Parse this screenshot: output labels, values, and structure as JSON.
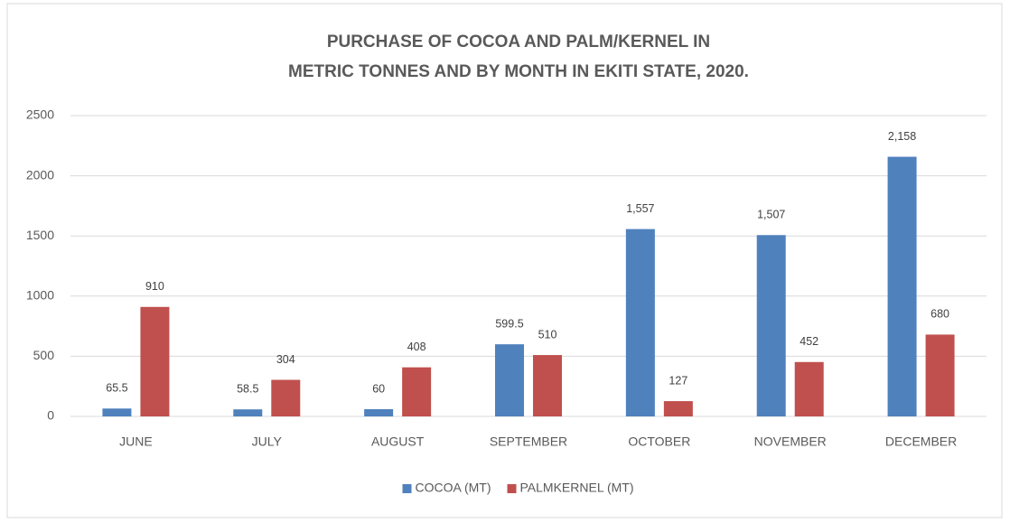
{
  "chart_data": {
    "type": "bar",
    "title": [
      "PURCHASE OF COCOA AND PALM/KERNEL IN",
      "METRIC TONNES AND BY MONTH IN EKITI STATE, 2020."
    ],
    "categories": [
      "JUNE",
      "JULY",
      "AUGUST",
      "SEPTEMBER",
      "OCTOBER",
      "NOVEMBER",
      "DECEMBER"
    ],
    "series": [
      {
        "name": "COCOA (MT)",
        "color": "#4f81bd",
        "values": [
          65.5,
          58.5,
          60,
          599.5,
          1557,
          1507,
          2158
        ],
        "value_labels": [
          "65.5",
          "58.5",
          "60",
          "599.5",
          "1,557",
          "1,507",
          "2,158"
        ]
      },
      {
        "name": "PALMKERNEL (MT)",
        "color": "#c0504d",
        "values": [
          910,
          304,
          408,
          510,
          127,
          452,
          680
        ],
        "value_labels": [
          "910",
          "304",
          "408",
          "510",
          "127",
          "452",
          "680"
        ]
      }
    ],
    "ylim": [
      0,
      2500
    ],
    "yticks": [
      0,
      500,
      1000,
      1500,
      2000,
      2500
    ],
    "grid": true,
    "legend": "bottom"
  }
}
